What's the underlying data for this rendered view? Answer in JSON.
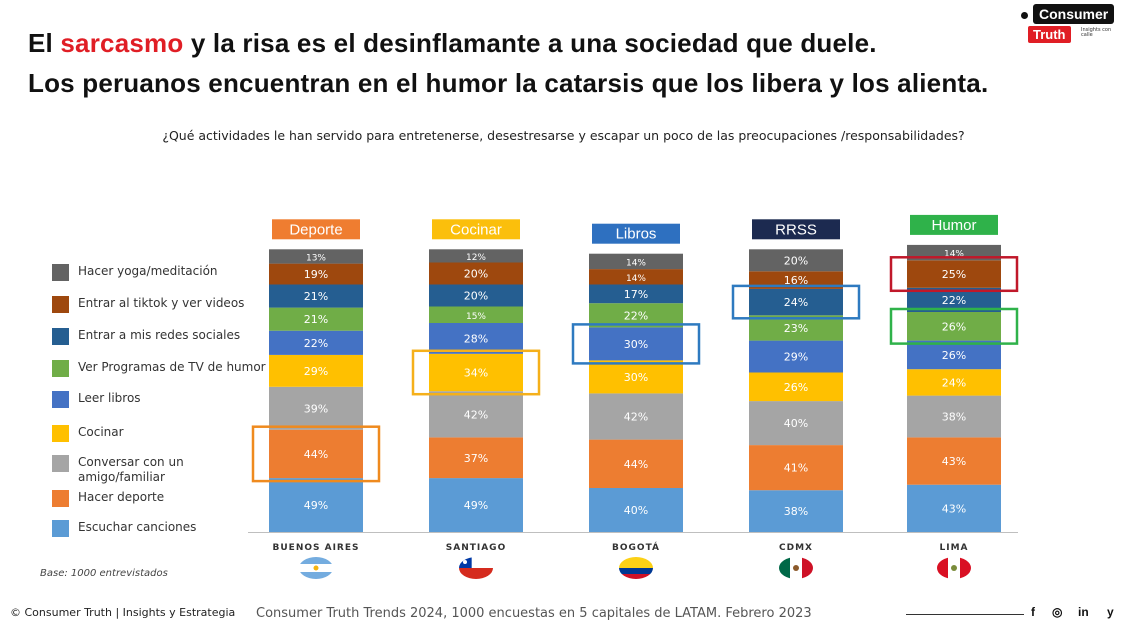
{
  "header": {
    "title_line1_pre": "El ",
    "title_line1_accent": "sarcasmo",
    "title_line1_post": " y la risa es el desinflamante a una sociedad que duele.",
    "title_line2": "Los peruanos encuentran en el humor la catarsis que los libera y los alienta."
  },
  "logo": {
    "consumer": "Consumer",
    "truth": "Truth",
    "insights": "Insights con calle"
  },
  "question": "¿Qué actividades le han servido para entretenerse, desestresarse y escapar un poco de las preocupaciones /responsabilidades?",
  "chart_data": {
    "type": "bar",
    "stacked": true,
    "categories": [
      "BUENOS AIRES",
      "SANTIAGO",
      "BOGOTÁ",
      "CDMX",
      "LIMA"
    ],
    "category_headers": [
      "Deporte",
      "Cocinar",
      "Libros",
      "RRSS",
      "Humor"
    ],
    "category_header_colors": [
      "#ef7d30",
      "#fbbf0c",
      "#2e70c0",
      "#1c2a50",
      "#2fb24a"
    ],
    "series": [
      {
        "name": "Escuchar canciones",
        "color": "#5b9bd5",
        "values": [
          49,
          49,
          40,
          38,
          43
        ]
      },
      {
        "name": "Hacer deporte",
        "color": "#ed7d31",
        "values": [
          44,
          37,
          44,
          41,
          43
        ]
      },
      {
        "name": "Conversar con un amigo/familiar",
        "color": "#a5a5a5",
        "values": [
          39,
          42,
          42,
          40,
          38
        ]
      },
      {
        "name": "Cocinar",
        "color": "#ffc000",
        "values": [
          29,
          34,
          30,
          26,
          24
        ]
      },
      {
        "name": "Leer libros",
        "color": "#4472c4",
        "values": [
          22,
          28,
          30,
          29,
          26
        ]
      },
      {
        "name": "Ver Programas de TV de humor",
        "color": "#70ad47",
        "values": [
          21,
          15,
          22,
          23,
          26
        ]
      },
      {
        "name": "Entrar a mis redes sociales",
        "color": "#255e91",
        "values": [
          21,
          20,
          17,
          24,
          22
        ]
      },
      {
        "name": "Entrar al tiktok y ver videos",
        "color": "#9e480e",
        "values": [
          19,
          20,
          14,
          16,
          25
        ]
      },
      {
        "name": "Hacer yoga/meditación",
        "color": "#636363",
        "values": [
          13,
          12,
          14,
          20,
          14
        ]
      }
    ],
    "highlights": [
      {
        "category": "BUENOS AIRES",
        "series": "Hacer deporte",
        "color": "#ef8a1e"
      },
      {
        "category": "SANTIAGO",
        "series": "Cocinar",
        "color": "#f5b01a"
      },
      {
        "category": "BOGOTÁ",
        "series": "Leer libros",
        "color": "#2e7ac0"
      },
      {
        "category": "CDMX",
        "series": "Entrar a mis redes sociales",
        "color": "#2e7ac0"
      },
      {
        "category": "LIMA",
        "series": "Entrar al tiktok y ver videos",
        "color": "#c0182a"
      },
      {
        "category": "LIMA",
        "series": "Ver Programas de TV de humor",
        "color": "#2fb24a"
      }
    ],
    "legend_placement": "left",
    "legend_order": [
      "Hacer yoga/meditación",
      "Entrar al tiktok y ver videos",
      "Entrar a mis redes sociales",
      "Ver Programas de TV de humor",
      "Leer libros",
      "Cocinar",
      "Conversar con un amigo/familiar",
      "Hacer deporte",
      "Escuchar canciones"
    ],
    "value_suffix": "%",
    "grid": false
  },
  "base_note": "Base: 1000 entrevistados",
  "footer": {
    "copyright": "© Consumer Truth | Insights y Estrategia",
    "source": "Consumer Truth Trends 2024, 1000 encuestas en 5 capitales de LATAM. Febrero 2023",
    "social": [
      "f",
      "◎",
      "in",
      "y"
    ]
  },
  "flags": [
    "flag-argentina-icon",
    "flag-chile-icon",
    "flag-colombia-icon",
    "flag-mexico-icon",
    "flag-peru-icon"
  ]
}
